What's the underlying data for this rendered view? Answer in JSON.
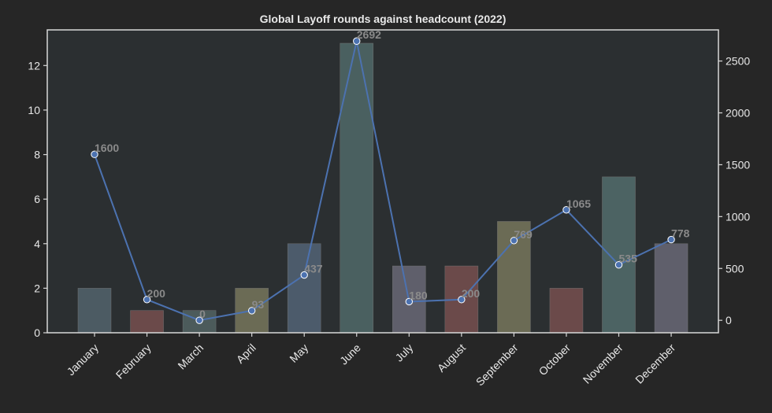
{
  "chart_data": {
    "type": "bar",
    "title": "Global Layoff rounds against headcount (2022)",
    "categories": [
      "January",
      "February",
      "March",
      "April",
      "May",
      "June",
      "July",
      "August",
      "September",
      "October",
      "November",
      "December"
    ],
    "series": [
      {
        "type": "bar",
        "axis": "left",
        "values": [
          2,
          1,
          1,
          2,
          4,
          13,
          3,
          3,
          5,
          2,
          7,
          4
        ]
      },
      {
        "type": "line",
        "axis": "right",
        "values": [
          1600,
          200,
          0,
          93,
          437,
          2692,
          180,
          200,
          769,
          1065,
          535,
          778
        ],
        "color": "#4c72b0"
      }
    ],
    "bar_colors": [
      "#4c5b63",
      "#6b4a4a",
      "#4c5b5b",
      "#6b6b55",
      "#4c5b6b",
      "#4a6060",
      "#5f5f6b",
      "#6b4a4a",
      "#6b6b55",
      "#6b4a4a",
      "#4c6363",
      "#5f5f6b"
    ],
    "ylim_left": [
      0,
      13.6
    ],
    "ylim_right": [
      -120,
      2800
    ],
    "yticks_left": [
      0,
      2,
      4,
      6,
      8,
      10,
      12
    ],
    "yticks_right": [
      0,
      500,
      1000,
      1500,
      2000,
      2500
    ],
    "grid": false,
    "colors": {
      "background": "#262626",
      "plot_background": "#2b2f31",
      "frame": "#d8d8d8",
      "text": "#e8e8e8",
      "annotation": "#8a8a8a"
    }
  }
}
